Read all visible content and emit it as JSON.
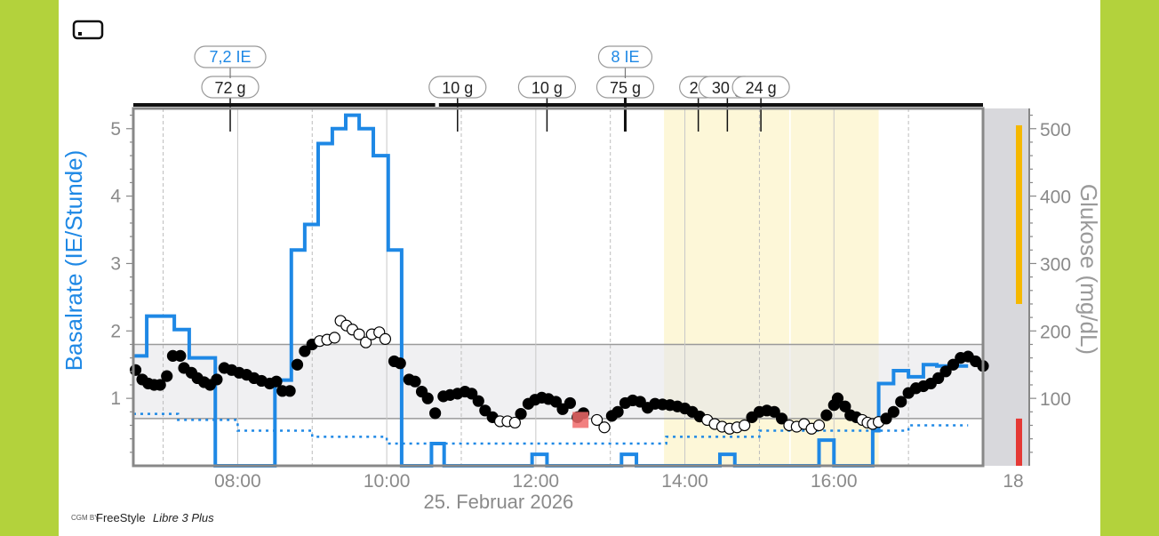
{
  "source": {
    "prefix": "CGM BY",
    "brand": "FreeStyle",
    "product": "Libre 3 Plus"
  },
  "chart_data": {
    "type": "line",
    "date_label": "25. Februar 2026",
    "x_axis": {
      "min": 6.6,
      "max": 18.0,
      "ticks": [
        "08:00",
        "10:00",
        "12:00",
        "14:00",
        "16:00",
        "18"
      ],
      "tick_values": [
        8,
        10,
        12,
        14,
        16,
        18
      ]
    },
    "y_left": {
      "label": "Basalrate (IE/Stunde)",
      "min": 0,
      "max": 5.3,
      "ticks": [
        1,
        2,
        3,
        4,
        5
      ]
    },
    "y_right": {
      "label": "Glukose (mg/dL)",
      "min": 0,
      "max": 530,
      "ticks": [
        100,
        200,
        300,
        400,
        500
      ]
    },
    "target_range_mgdl": [
      70,
      180
    ],
    "yellow_bands_hours": [
      [
        13.72,
        15.4
      ],
      [
        15.42,
        16.6
      ]
    ],
    "insulin_bolus": [
      {
        "x": 7.9,
        "label": "7,2 IE"
      },
      {
        "x": 13.2,
        "label": "8 IE"
      }
    ],
    "carbs": [
      {
        "x": 7.9,
        "label": "72 g"
      },
      {
        "x": 10.95,
        "label": "10 g"
      },
      {
        "x": 12.15,
        "label": "10 g"
      },
      {
        "x": 13.2,
        "label": "75 g"
      },
      {
        "x": 14.18,
        "label": "26"
      },
      {
        "x": 14.57,
        "label": "30 g"
      },
      {
        "x": 15.02,
        "label": "24 g"
      }
    ],
    "basal_series": {
      "name": "Basalrate",
      "points": [
        [
          6.6,
          1.63
        ],
        [
          6.78,
          1.63
        ],
        [
          6.78,
          2.22
        ],
        [
          7.15,
          2.22
        ],
        [
          7.15,
          2.02
        ],
        [
          7.35,
          2.02
        ],
        [
          7.35,
          1.6
        ],
        [
          7.7,
          1.6
        ],
        [
          7.7,
          0
        ],
        [
          8.5,
          0
        ],
        [
          8.5,
          1.27
        ],
        [
          8.72,
          1.27
        ],
        [
          8.72,
          3.2
        ],
        [
          8.9,
          3.2
        ],
        [
          8.9,
          3.58
        ],
        [
          9.08,
          3.58
        ],
        [
          9.08,
          4.78
        ],
        [
          9.27,
          4.78
        ],
        [
          9.27,
          5.0
        ],
        [
          9.45,
          5.0
        ],
        [
          9.45,
          5.2
        ],
        [
          9.63,
          5.2
        ],
        [
          9.63,
          5.0
        ],
        [
          9.82,
          5.0
        ],
        [
          9.82,
          4.6
        ],
        [
          10.02,
          4.6
        ],
        [
          10.02,
          3.2
        ],
        [
          10.2,
          3.2
        ],
        [
          10.2,
          0
        ],
        [
          10.6,
          0
        ],
        [
          10.6,
          0.33
        ],
        [
          10.77,
          0.33
        ],
        [
          10.77,
          0
        ],
        [
          11.95,
          0
        ],
        [
          11.95,
          0.17
        ],
        [
          12.15,
          0.17
        ],
        [
          12.15,
          0
        ],
        [
          13.15,
          0
        ],
        [
          13.15,
          0.17
        ],
        [
          13.35,
          0.17
        ],
        [
          13.35,
          0
        ],
        [
          14.47,
          0
        ],
        [
          14.47,
          0.17
        ],
        [
          14.67,
          0.17
        ],
        [
          14.67,
          0
        ],
        [
          15.8,
          0
        ],
        [
          15.8,
          0.38
        ],
        [
          16.0,
          0.38
        ],
        [
          16.0,
          0
        ],
        [
          16.52,
          0
        ],
        [
          16.52,
          0.52
        ],
        [
          16.6,
          0.52
        ],
        [
          16.6,
          1.22
        ],
        [
          16.8,
          1.22
        ],
        [
          16.8,
          1.41
        ],
        [
          17.0,
          1.41
        ],
        [
          17.0,
          1.32
        ],
        [
          17.2,
          1.32
        ],
        [
          17.2,
          1.5
        ],
        [
          17.38,
          1.5
        ],
        [
          17.38,
          1.48
        ],
        [
          17.8,
          1.48
        ]
      ]
    },
    "programmed_basal_series": {
      "name": "",
      "points": [
        [
          6.6,
          0.77
        ],
        [
          7.2,
          0.77
        ],
        [
          7.2,
          0.68
        ],
        [
          8.0,
          0.68
        ],
        [
          8.0,
          0.52
        ],
        [
          9.0,
          0.52
        ],
        [
          9.0,
          0.43
        ],
        [
          10.0,
          0.43
        ],
        [
          10.0,
          0.33
        ],
        [
          13.75,
          0.33
        ],
        [
          13.75,
          0.43
        ],
        [
          15.0,
          0.43
        ],
        [
          15.0,
          0.52
        ],
        [
          17.0,
          0.52
        ],
        [
          17.0,
          0.6
        ],
        [
          17.8,
          0.6
        ]
      ]
    },
    "glucose_series": {
      "name": "Glukose",
      "points": [
        [
          6.63,
          142
        ],
        [
          6.72,
          128
        ],
        [
          6.8,
          122
        ],
        [
          6.88,
          120
        ],
        [
          6.96,
          120
        ],
        [
          7.05,
          133
        ],
        [
          7.13,
          163
        ],
        [
          7.23,
          163
        ],
        [
          7.28,
          145
        ],
        [
          7.38,
          138
        ],
        [
          7.46,
          130
        ],
        [
          7.55,
          124
        ],
        [
          7.63,
          120
        ],
        [
          7.72,
          128
        ],
        [
          7.82,
          145
        ],
        [
          7.92,
          142
        ],
        [
          8.02,
          138
        ],
        [
          8.12,
          135
        ],
        [
          8.22,
          130
        ],
        [
          8.32,
          126
        ],
        [
          8.43,
          122
        ],
        [
          8.52,
          125
        ],
        [
          8.6,
          111
        ],
        [
          8.7,
          111
        ],
        [
          8.8,
          150
        ],
        [
          8.9,
          170
        ],
        [
          9.0,
          180
        ],
        [
          9.1,
          185
        ],
        [
          9.2,
          187
        ],
        [
          9.3,
          190
        ],
        [
          9.38,
          215
        ],
        [
          9.46,
          208
        ],
        [
          9.54,
          202
        ],
        [
          9.63,
          195
        ],
        [
          9.72,
          183
        ],
        [
          9.8,
          195
        ],
        [
          9.9,
          198
        ],
        [
          9.98,
          188
        ],
        [
          10.1,
          155
        ],
        [
          10.18,
          152
        ],
        [
          10.3,
          128
        ],
        [
          10.38,
          125
        ],
        [
          10.47,
          110
        ],
        [
          10.55,
          100
        ],
        [
          10.65,
          78
        ],
        [
          10.76,
          103
        ],
        [
          10.85,
          105
        ],
        [
          10.95,
          107
        ],
        [
          11.05,
          110
        ],
        [
          11.14,
          107
        ],
        [
          11.23,
          96
        ],
        [
          11.32,
          82
        ],
        [
          11.42,
          72
        ],
        [
          11.52,
          66
        ],
        [
          11.62,
          66
        ],
        [
          11.72,
          64
        ],
        [
          11.8,
          77
        ],
        [
          11.9,
          92
        ],
        [
          11.99,
          98
        ],
        [
          12.08,
          101
        ],
        [
          12.17,
          99
        ],
        [
          12.27,
          95
        ],
        [
          12.36,
          84
        ],
        [
          12.46,
          93
        ],
        [
          12.56,
          72
        ],
        [
          12.64,
          78
        ],
        [
          12.82,
          68
        ],
        [
          12.92,
          57
        ],
        [
          13.02,
          74
        ],
        [
          13.1,
          80
        ],
        [
          13.2,
          93
        ],
        [
          13.3,
          97
        ],
        [
          13.4,
          95
        ],
        [
          13.5,
          86
        ],
        [
          13.6,
          92
        ],
        [
          13.7,
          91
        ],
        [
          13.8,
          90
        ],
        [
          13.9,
          88
        ],
        [
          14.0,
          85
        ],
        [
          14.1,
          80
        ],
        [
          14.2,
          73
        ],
        [
          14.3,
          68
        ],
        [
          14.4,
          62
        ],
        [
          14.5,
          58
        ],
        [
          14.6,
          55
        ],
        [
          14.7,
          57
        ],
        [
          14.8,
          60
        ],
        [
          14.9,
          72
        ],
        [
          15.0,
          80
        ],
        [
          15.1,
          82
        ],
        [
          15.2,
          80
        ],
        [
          15.3,
          70
        ],
        [
          15.4,
          60
        ],
        [
          15.5,
          58
        ],
        [
          15.6,
          62
        ],
        [
          15.7,
          55
        ],
        [
          15.8,
          60
        ],
        [
          15.9,
          75
        ],
        [
          16.0,
          90
        ],
        [
          16.05,
          100
        ],
        [
          16.15,
          88
        ],
        [
          16.22,
          75
        ],
        [
          16.3,
          72
        ],
        [
          16.38,
          68
        ],
        [
          16.45,
          64
        ],
        [
          16.52,
          62
        ],
        [
          16.6,
          65
        ],
        [
          16.7,
          70
        ],
        [
          16.8,
          80
        ],
        [
          16.9,
          95
        ],
        [
          17.0,
          108
        ],
        [
          17.1,
          115
        ],
        [
          17.2,
          118
        ],
        [
          17.3,
          122
        ],
        [
          17.4,
          130
        ],
        [
          17.5,
          140
        ],
        [
          17.6,
          150
        ],
        [
          17.7,
          160
        ],
        [
          17.8,
          162
        ],
        [
          17.9,
          155
        ],
        [
          18.0,
          148
        ]
      ]
    }
  }
}
